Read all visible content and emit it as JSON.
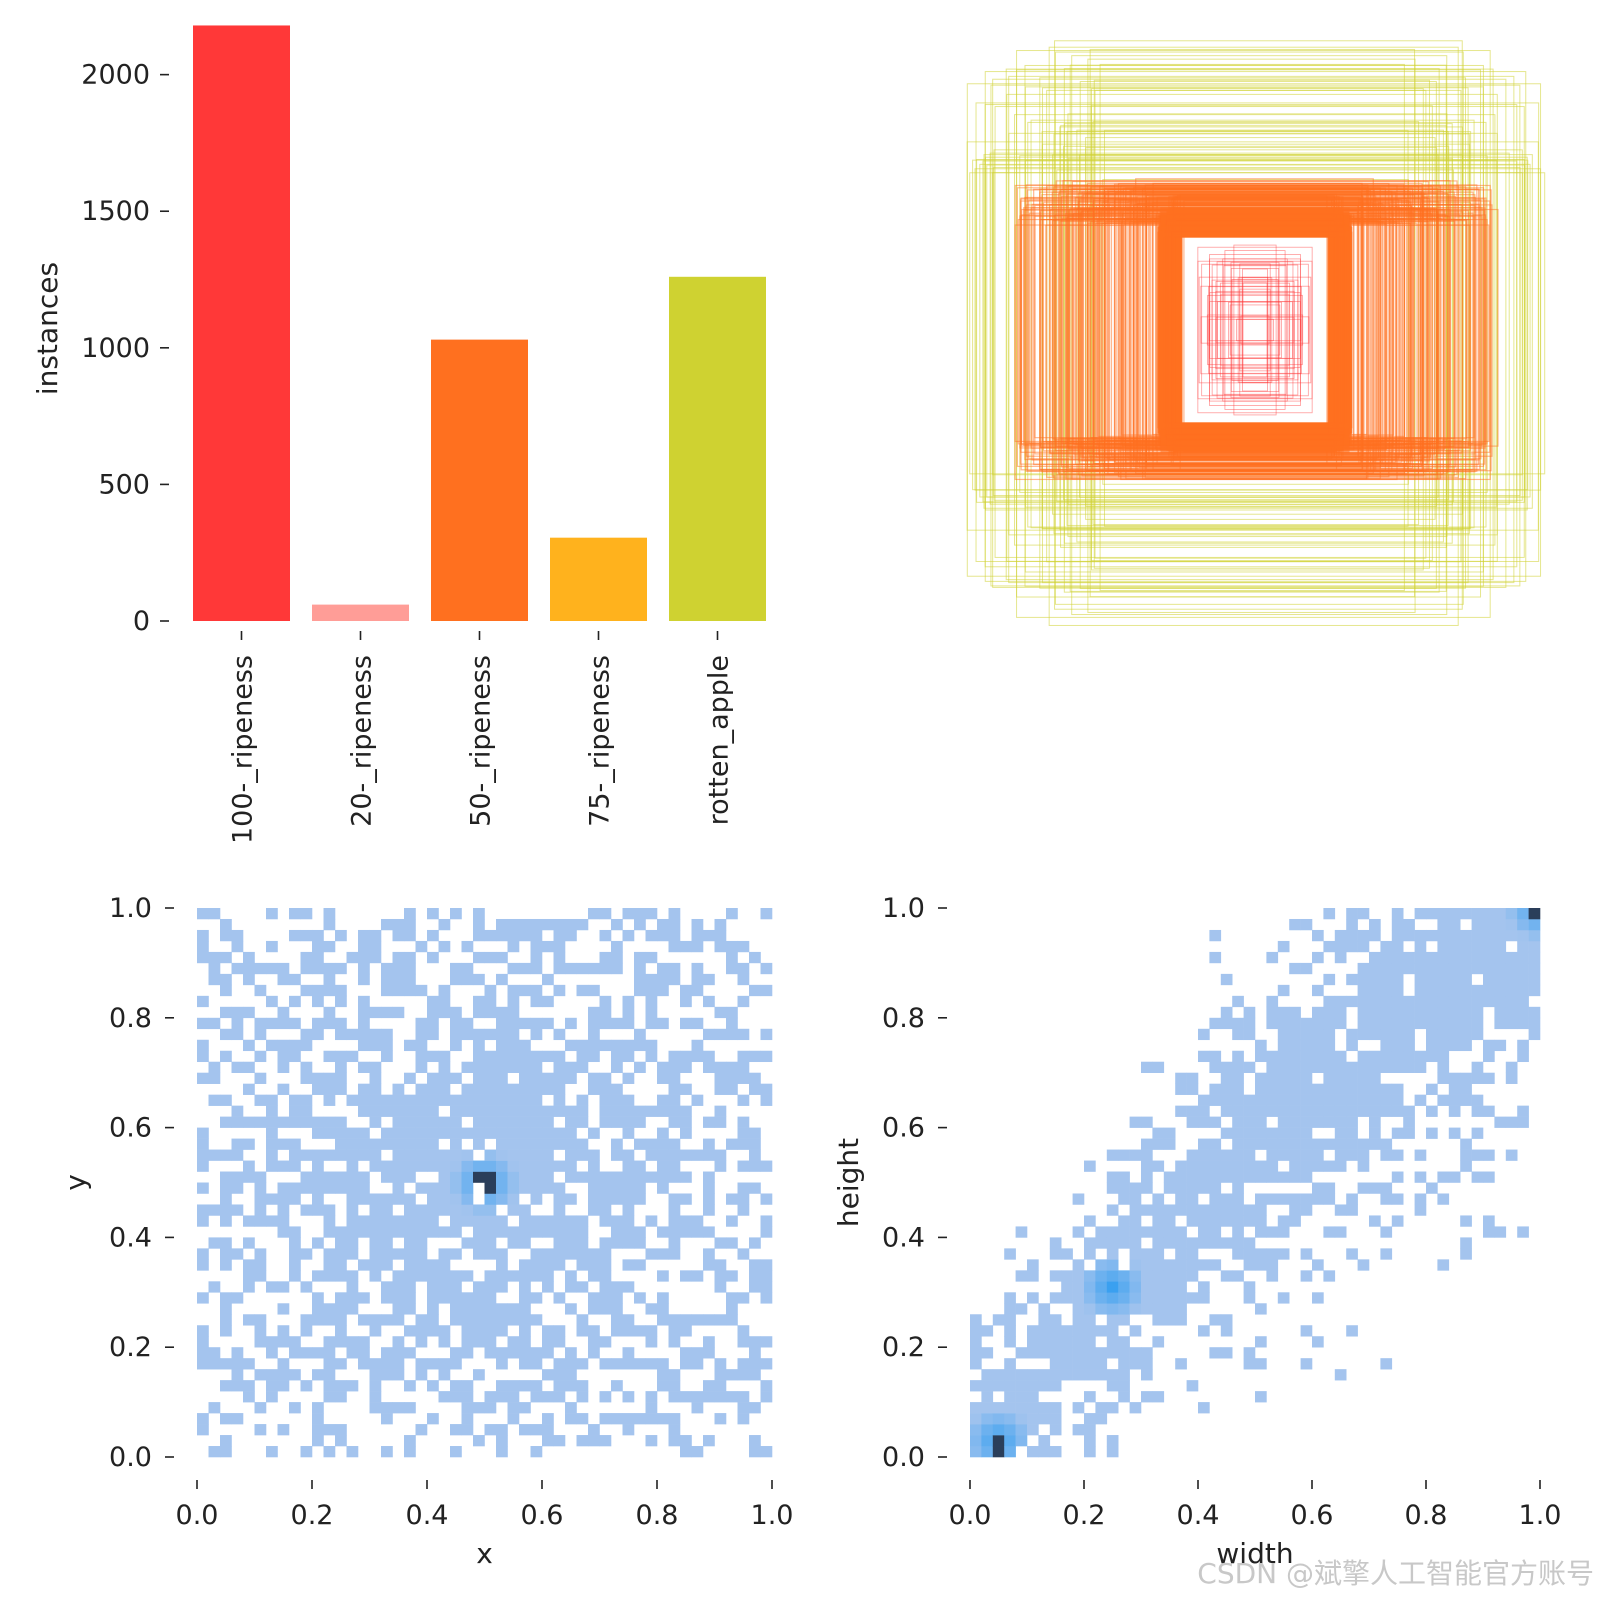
{
  "chart_data": [
    {
      "type": "bar",
      "ylabel": "instances",
      "xlabel": "",
      "categories": [
        "100-_ripeness",
        "20-_ripeness",
        "50-_ripeness",
        "75-_ripeness",
        "rotten_apple"
      ],
      "values": [
        2180,
        60,
        1030,
        305,
        1260
      ],
      "colors": [
        "#ff3838",
        "#ff9d97",
        "#ff701f",
        "#ffb21d",
        "#cfd231"
      ],
      "ylim": [
        0,
        2200
      ],
      "yticks": [
        0,
        500,
        1000,
        1500,
        2000
      ],
      "ytick_labels": [
        "0",
        "500",
        "1000",
        "1500",
        "2000"
      ]
    },
    {
      "type": "overlaid_boxes",
      "title": "",
      "description_colors": [
        "#ff3838",
        "#ff701f",
        "#cfd231"
      ],
      "axes_visible": false
    },
    {
      "type": "heatmap",
      "xlabel": "x",
      "ylabel": "y",
      "xlim": [
        0,
        1
      ],
      "ylim": [
        0,
        1
      ],
      "xticks": [
        "0.0",
        "0.2",
        "0.4",
        "0.6",
        "0.8",
        "1.0"
      ],
      "yticks": [
        "0.0",
        "0.2",
        "0.4",
        "0.6",
        "0.8",
        "1.0"
      ],
      "peak": [
        0.5,
        0.5
      ],
      "color_low": "#a4c4ee",
      "color_mid": "#3aa0f0",
      "color_high": "#2a3e5a"
    },
    {
      "type": "heatmap",
      "xlabel": "width",
      "ylabel": "height",
      "xlim": [
        0,
        1
      ],
      "ylim": [
        0,
        1
      ],
      "xticks": [
        "0.0",
        "0.2",
        "0.4",
        "0.6",
        "0.8",
        "1.0"
      ],
      "yticks": [
        "0.0",
        "0.2",
        "0.4",
        "0.6",
        "0.8",
        "1.0"
      ],
      "peaks": [
        [
          0.05,
          0.03
        ],
        [
          0.25,
          0.31
        ],
        [
          1.0,
          1.0
        ]
      ],
      "color_low": "#a4c4ee",
      "color_mid": "#3aa0f0",
      "color_high": "#2a3e5a"
    }
  ],
  "watermark": "CSDN @斌擎人工智能官方账号"
}
